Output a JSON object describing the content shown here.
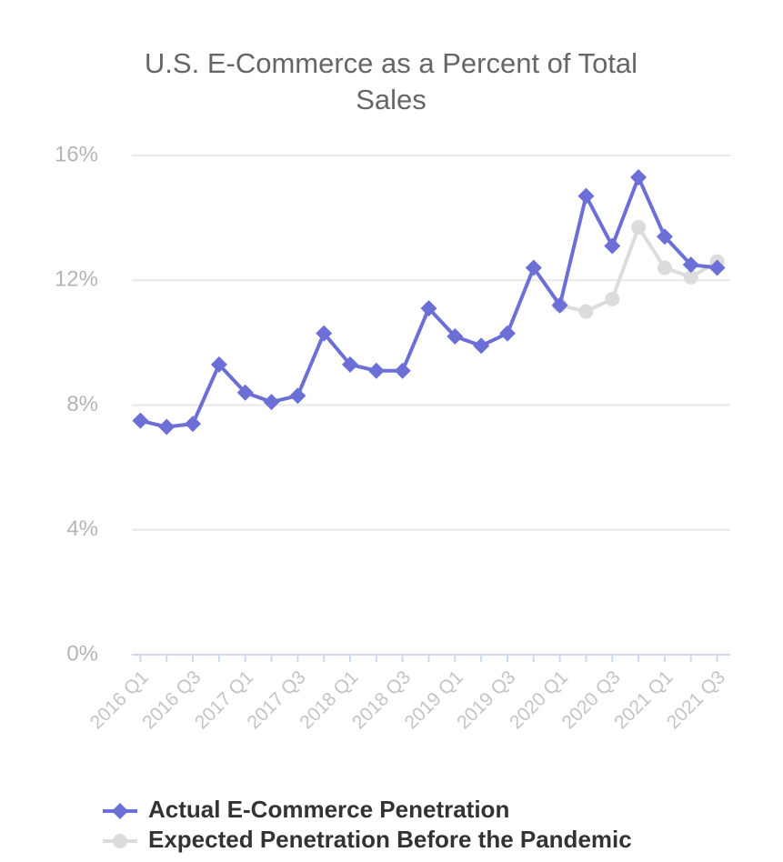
{
  "chart_data": {
    "type": "line",
    "title": "U.S. E-Commerce as a Percent of Total Sales",
    "categories": [
      "2016 Q1",
      null,
      "2016 Q3",
      null,
      "2017 Q1",
      null,
      "2017 Q3",
      null,
      "2018 Q1",
      null,
      "2018 Q3",
      null,
      "2019 Q1",
      null,
      "2019 Q3",
      null,
      "2020 Q1",
      null,
      "2020 Q3",
      null,
      "2021 Q1",
      null,
      "2021 Q3"
    ],
    "series": [
      {
        "name": "Expected Penetration Before the Pandemic",
        "color": "#dcdcdc",
        "values": [
          null,
          null,
          null,
          null,
          null,
          null,
          null,
          null,
          null,
          null,
          null,
          null,
          null,
          null,
          null,
          null,
          11.2,
          11.0,
          11.4,
          13.7,
          12.4,
          12.1,
          12.6
        ]
      },
      {
        "name": "Actual E-Commerce Penetration",
        "color": "#6b6fd6",
        "values": [
          7.5,
          7.3,
          7.4,
          9.3,
          8.4,
          8.1,
          8.3,
          10.3,
          9.3,
          9.1,
          9.1,
          11.1,
          10.2,
          9.9,
          10.3,
          12.4,
          11.2,
          14.7,
          13.1,
          15.3,
          13.4,
          12.5,
          12.4
        ]
      }
    ],
    "ylim": [
      0,
      16
    ],
    "yticks": [
      {
        "value": 0,
        "label": "0%"
      },
      {
        "value": 4,
        "label": "4%"
      },
      {
        "value": 8,
        "label": "8%"
      },
      {
        "value": 12,
        "label": "12%"
      },
      {
        "value": 16,
        "label": "16%"
      }
    ],
    "grid": true
  }
}
